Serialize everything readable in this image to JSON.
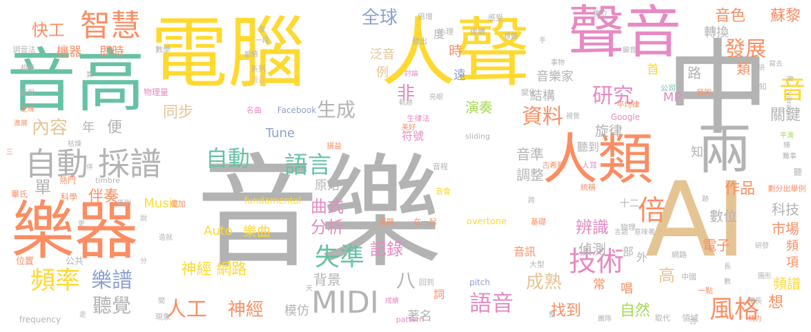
{
  "palette": {
    "gray": "#b3b3b3",
    "yellow": "#ffd92f",
    "orange": "#fc8d62",
    "green": "#66c2a5",
    "blue": "#8da0cb",
    "pink": "#e78ac3",
    "lime": "#a6d854",
    "tan": "#e5c494"
  },
  "words": [
    {
      "text": "音樂"
    },
    {
      "text": "電腦"
    },
    {
      "text": "人聲"
    },
    {
      "text": "音高"
    },
    {
      "text": "中"
    },
    {
      "text": "聲音"
    },
    {
      "text": "AI"
    },
    {
      "text": "樂器"
    },
    {
      "text": "人類"
    },
    {
      "text": "兩"
    },
    {
      "text": "自動"
    },
    {
      "text": "採譜"
    },
    {
      "text": "MIDI"
    },
    {
      "text": "智慧"
    },
    {
      "text": "人工"
    },
    {
      "text": "全球"
    },
    {
      "text": "發展"
    },
    {
      "text": "技術"
    },
    {
      "text": "失準"
    },
    {
      "text": "頻率"
    },
    {
      "text": "風格"
    },
    {
      "text": "語音"
    },
    {
      "text": "樂譜"
    },
    {
      "text": "聽覺"
    },
    {
      "text": "內容"
    },
    {
      "text": "生成"
    },
    {
      "text": "自動"
    },
    {
      "text": "語言"
    },
    {
      "text": "研究"
    },
    {
      "text": "資料"
    },
    {
      "text": "音色"
    },
    {
      "text": "蘇黎"
    },
    {
      "text": "快工"
    },
    {
      "text": "機器"
    },
    {
      "text": "即時"
    },
    {
      "text": "同步"
    },
    {
      "text": "神經 網路"
    },
    {
      "text": "Music"
    },
    {
      "text": "Auto"
    },
    {
      "text": "樂曲"
    },
    {
      "text": "曲式"
    },
    {
      "text": "分析"
    },
    {
      "text": "記錄"
    },
    {
      "text": "八"
    },
    {
      "text": "成熟"
    },
    {
      "text": "辨識"
    },
    {
      "text": "作品"
    },
    {
      "text": "神經"
    },
    {
      "text": "單"
    },
    {
      "text": "伴奏"
    },
    {
      "text": "背景"
    },
    {
      "text": "模仿"
    },
    {
      "text": "著名"
    },
    {
      "text": "找到"
    },
    {
      "text": "自然"
    },
    {
      "text": "頻譜"
    },
    {
      "text": "市場"
    },
    {
      "text": "科技"
    },
    {
      "text": "電子"
    },
    {
      "text": "關鍵"
    },
    {
      "text": "倍"
    },
    {
      "text": "音"
    },
    {
      "text": "演奏"
    },
    {
      "text": "旋律"
    },
    {
      "text": "音準"
    },
    {
      "text": "調整"
    },
    {
      "text": "聽到"
    },
    {
      "text": "偵測"
    },
    {
      "text": "數位"
    },
    {
      "text": "符號"
    },
    {
      "text": "原始"
    },
    {
      "text": "Tune"
    },
    {
      "text": "音樂家"
    },
    {
      "text": "結構"
    },
    {
      "text": "轉換"
    },
    {
      "text": "類"
    },
    {
      "text": "泛音"
    },
    {
      "text": "時"
    },
    {
      "text": "遠"
    },
    {
      "text": "非"
    },
    {
      "text": "例"
    },
    {
      "text": "度"
    },
    {
      "text": "年"
    },
    {
      "text": "便"
    },
    {
      "text": "MP"
    },
    {
      "text": "路"
    },
    {
      "text": "首"
    },
    {
      "text": "高"
    },
    {
      "text": "想"
    },
    {
      "text": "項"
    },
    {
      "text": "頻"
    },
    {
      "text": "唱"
    },
    {
      "text": "常"
    },
    {
      "text": "音訊"
    },
    {
      "text": "部"
    },
    {
      "text": "外"
    },
    {
      "text": "知"
    },
    {
      "text": "十二"
    },
    {
      "text": "詞"
    },
    {
      "text": "Facebook"
    },
    {
      "text": "Google"
    },
    {
      "text": "fundamental"
    },
    {
      "text": "overtone"
    },
    {
      "text": "pitch"
    },
    {
      "text": "frequency"
    },
    {
      "text": "timbre"
    },
    {
      "text": "sliding"
    },
    {
      "text": "pattern"
    },
    {
      "text": "vibrato"
    },
    {
      "text": "物理量"
    },
    {
      "text": "名曲"
    },
    {
      "text": "公共"
    },
    {
      "text": "位置"
    },
    {
      "text": "畢氏"
    },
    {
      "text": "熱門"
    },
    {
      "text": "科學"
    },
    {
      "text": "疊加"
    },
    {
      "text": "在一起"
    },
    {
      "text": "議題"
    },
    {
      "text": "基礎"
    },
    {
      "text": "統稱"
    },
    {
      "text": "古希臘"
    },
    {
      "text": "損益"
    },
    {
      "text": "平均律"
    },
    {
      "text": "公司"
    },
    {
      "text": "認知"
    },
    {
      "text": "目的"
    },
    {
      "text": "獨立"
    },
    {
      "text": "感受"
    },
    {
      "text": "後續"
    },
    {
      "text": "心理"
    },
    {
      "text": "發出"
    },
    {
      "text": "倍增"
    },
    {
      "text": "數學"
    },
    {
      "text": "調音法"
    },
    {
      "text": "系列"
    },
    {
      "text": "滑音"
    },
    {
      "text": "變化"
    },
    {
      "text": "生律法"
    },
    {
      "text": "美好"
    },
    {
      "text": "音程"
    },
    {
      "text": "音會"
    },
    {
      "text": "人耳"
    },
    {
      "text": "劃分出舉例"
    },
    {
      "text": "物理"
    },
    {
      "text": "網路"
    },
    {
      "text": "中國"
    },
    {
      "text": "大型"
    },
    {
      "text": "一點"
    },
    {
      "text": "擅長"
    },
    {
      "text": "精力"
    },
    {
      "text": "取代"
    },
    {
      "text": "領域"
    },
    {
      "text": "團隊"
    },
    {
      "text": "回到"
    },
    {
      "text": "成績"
    },
    {
      "text": "現象"
    },
    {
      "text": "過程"
    },
    {
      "text": "進展"
    },
    {
      "text": "枯燥"
    },
    {
      "text": "乏味"
    },
    {
      "text": "相關"
    },
    {
      "text": "軌跡"
    },
    {
      "text": "亮眼"
    },
    {
      "text": "討論"
    },
    {
      "text": "脈絡"
    },
    {
      "text": "事物"
    },
    {
      "text": "顯音"
    },
    {
      "text": "研發"
    },
    {
      "text": "圖形"
    },
    {
      "text": "意味著"
    },
    {
      "text": "平滑"
    },
    {
      "text": "難事"
    },
    {
      "text": "視覺"
    },
    {
      "text": "腦研"
    },
    {
      "text": "一段"
    },
    {
      "text": "區別"
    },
    {
      "text": "造就"
    },
    {
      "text": "言語"
    },
    {
      "text": "跨"
    },
    {
      "text": "三"
    },
    {
      "text": "說"
    },
    {
      "text": "分"
    },
    {
      "text": "更"
    },
    {
      "text": "伴"
    },
    {
      "text": "走"
    },
    {
      "text": "整"
    },
    {
      "text": "天"
    },
    {
      "text": "間"
    },
    {
      "text": "長"
    },
    {
      "text": "數"
    },
    {
      "text": "末"
    },
    {
      "text": "手"
    },
    {
      "text": "放"
    },
    {
      "text": "算"
    },
    {
      "text": "聽"
    },
    {
      "text": "跡"
    },
    {
      "text": "古"
    },
    {
      "text": "標籤"
    },
    {
      "text": "寫去"
    },
    {
      "text": "臻"
    }
  ]
}
